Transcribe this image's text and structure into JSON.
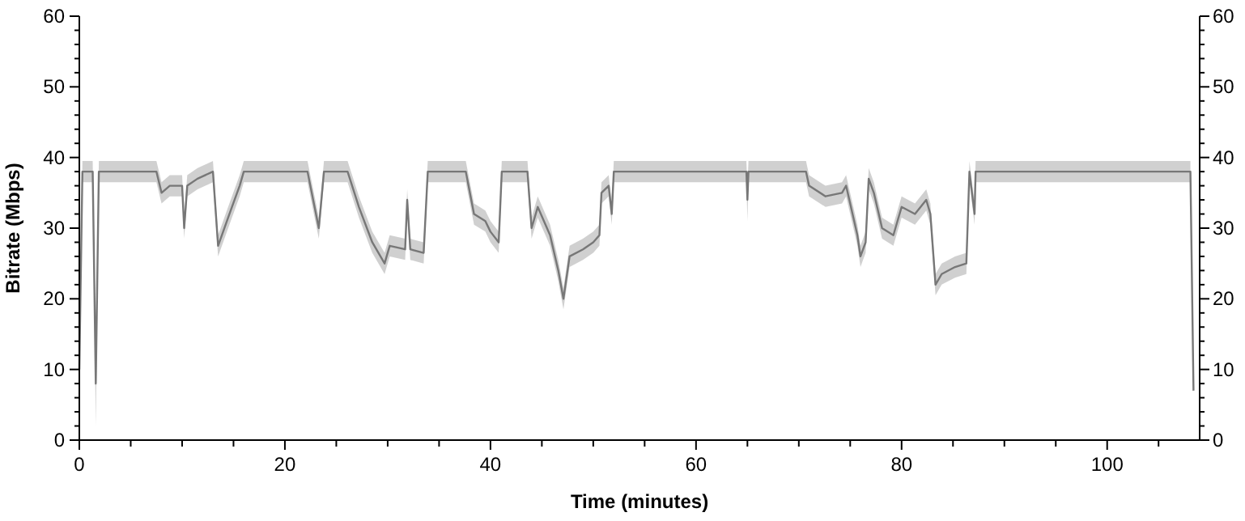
{
  "chart_data": {
    "type": "line",
    "xlabel": "Time (minutes)",
    "ylabel": "Bitrate (Mbps)",
    "x": [
      0,
      0.3,
      1.3,
      1.6,
      1.9,
      7.5,
      8,
      8.8,
      10,
      10.2,
      10.5,
      11.5,
      13,
      13.5,
      14.6,
      15.6,
      16,
      22.2,
      23.3,
      23.8,
      26.1,
      27.2,
      28.5,
      29.7,
      30.2,
      31.7,
      31.9,
      32.2,
      33.5,
      33.9,
      37.6,
      38.4,
      39.5,
      40,
      40.8,
      41.1,
      43.6,
      44,
      44.6,
      45.8,
      46.6,
      47.1,
      47.7,
      49,
      50,
      50.6,
      50.8,
      51.5,
      51.8,
      52,
      64.9,
      65,
      65.1,
      70.7,
      71,
      72.6,
      74.2,
      74.6,
      75.7,
      76,
      76.5,
      76.8,
      77.3,
      78.1,
      79.2,
      80,
      81.3,
      82.4,
      82.8,
      83.3,
      83.9,
      85.2,
      86.3,
      86.6,
      87.1,
      87.2,
      108.1,
      108.4
    ],
    "series": [
      {
        "color": "#777777",
        "values": [
          10,
          38,
          38,
          8,
          38,
          38,
          35,
          36,
          36,
          30,
          36,
          37,
          38,
          27.5,
          32,
          36,
          38,
          38,
          30,
          38,
          38,
          33,
          28,
          25,
          27.5,
          27,
          34,
          27,
          26.5,
          38,
          38,
          32,
          31,
          29.5,
          28,
          38,
          38,
          30,
          33,
          29,
          24,
          20,
          26,
          27,
          28,
          29,
          35,
          36,
          32,
          38,
          38,
          34,
          38,
          38,
          36,
          34.5,
          35,
          36,
          29,
          26,
          28,
          37,
          35,
          30,
          29,
          33,
          32,
          34,
          32,
          22,
          23.5,
          24.5,
          25,
          38,
          32,
          38,
          38,
          7
        ],
        "upper": [
          11.5,
          39.5,
          39.5,
          9.5,
          39.5,
          39.5,
          36.5,
          37.5,
          37.5,
          31.5,
          37.5,
          38.5,
          39.5,
          29,
          33.5,
          37.5,
          39.5,
          39.5,
          31.5,
          39.5,
          39.5,
          34.5,
          29.5,
          26.5,
          29,
          28.5,
          35.5,
          28.5,
          28,
          39.5,
          39.5,
          33.5,
          32.5,
          31,
          29.5,
          39.5,
          39.5,
          31.5,
          34.5,
          30.5,
          25.5,
          21.5,
          27.5,
          28.5,
          29.5,
          30.5,
          36.5,
          37.5,
          33.5,
          39.5,
          39.5,
          35.5,
          39.5,
          39.5,
          37.5,
          36,
          36.5,
          37.5,
          30.5,
          27.5,
          29.5,
          38.5,
          36.5,
          31.5,
          30.5,
          34.5,
          33.5,
          35.5,
          33.5,
          23.5,
          25,
          26,
          26.5,
          39.5,
          33.5,
          39.5,
          39.5,
          null
        ],
        "lower": [
          8.5,
          36.5,
          36.5,
          2,
          36.5,
          36.5,
          33.5,
          34.5,
          34.5,
          28.5,
          34.5,
          35.5,
          36.5,
          26,
          30.5,
          34.5,
          36.5,
          36.5,
          28.5,
          36.5,
          36.5,
          31.5,
          26.5,
          23.5,
          26,
          25.5,
          32.5,
          25.5,
          25,
          36.5,
          36.5,
          30.5,
          29.5,
          28,
          26.5,
          36.5,
          36.5,
          28.5,
          31.5,
          27.5,
          22.5,
          18.5,
          24.5,
          25.5,
          26.5,
          27.5,
          33.5,
          34.5,
          30.5,
          36.5,
          36.5,
          31,
          36.5,
          36.5,
          34.5,
          33,
          33.5,
          34.5,
          27.5,
          24.5,
          26.5,
          35.5,
          33.5,
          28.5,
          27.5,
          31.5,
          30.5,
          32.5,
          30.5,
          20.5,
          22,
          23,
          23.5,
          36.5,
          30.5,
          36.5,
          36.5,
          null
        ]
      }
    ],
    "xlim": [
      0,
      109
    ],
    "xticks": [
      0,
      {
        "value": 5,
        "label": null
      },
      {
        "value": 10,
        "label": null
      },
      {
        "value": 15,
        "label": null
      },
      20,
      {
        "value": 25,
        "label": null
      },
      {
        "value": 30,
        "label": null
      },
      {
        "value": 35,
        "label": null
      },
      40,
      {
        "value": 45,
        "label": null
      },
      {
        "value": 50,
        "label": null
      },
      {
        "value": 55,
        "label": null
      },
      60,
      {
        "value": 65,
        "label": null
      },
      {
        "value": 70,
        "label": null
      },
      {
        "value": 75,
        "label": null
      },
      80,
      {
        "value": 85,
        "label": null
      },
      {
        "value": 90,
        "label": null
      },
      {
        "value": 95,
        "label": null
      },
      100,
      {
        "value": 105,
        "label": null
      }
    ],
    "ylim": [
      0,
      60
    ],
    "yticks": [
      0,
      {
        "value": 2,
        "label": null
      },
      {
        "value": 4,
        "label": null
      },
      {
        "value": 6,
        "label": null
      },
      {
        "value": 8,
        "label": null
      },
      10,
      {
        "value": 12,
        "label": null
      },
      {
        "value": 14,
        "label": null
      },
      {
        "value": 16,
        "label": null
      },
      {
        "value": 18,
        "label": null
      },
      20,
      {
        "value": 22,
        "label": null
      },
      {
        "value": 24,
        "label": null
      },
      {
        "value": 26,
        "label": null
      },
      {
        "value": 28,
        "label": null
      },
      30,
      {
        "value": 32,
        "label": null
      },
      {
        "value": 34,
        "label": null
      },
      {
        "value": 36,
        "label": null
      },
      {
        "value": 38,
        "label": null
      },
      40,
      {
        "value": 42,
        "label": null
      },
      {
        "value": 44,
        "label": null
      },
      {
        "value": 46,
        "label": null
      },
      {
        "value": 48,
        "label": null
      },
      50,
      {
        "value": 52,
        "label": null
      },
      {
        "value": 54,
        "label": null
      },
      {
        "value": 56,
        "label": null
      },
      {
        "value": 58,
        "label": null
      },
      60
    ],
    "y2lim": [
      0,
      60
    ],
    "y2ticks": [
      0,
      {
        "value": 2,
        "label": null
      },
      {
        "value": 4,
        "label": null
      },
      {
        "value": 6,
        "label": null
      },
      {
        "value": 8,
        "label": null
      },
      10,
      {
        "value": 12,
        "label": null
      },
      {
        "value": 14,
        "label": null
      },
      {
        "value": 16,
        "label": null
      },
      {
        "value": 18,
        "label": null
      },
      20,
      {
        "value": 22,
        "label": null
      },
      {
        "value": 24,
        "label": null
      },
      {
        "value": 26,
        "label": null
      },
      {
        "value": 28,
        "label": null
      },
      30,
      {
        "value": 32,
        "label": null
      },
      {
        "value": 34,
        "label": null
      },
      {
        "value": 36,
        "label": null
      },
      {
        "value": 38,
        "label": null
      },
      40,
      {
        "value": 42,
        "label": null
      },
      {
        "value": 44,
        "label": null
      },
      {
        "value": 46,
        "label": null
      },
      {
        "value": 48,
        "label": null
      },
      50,
      {
        "value": 52,
        "label": null
      },
      {
        "value": 54,
        "label": null
      },
      {
        "value": 56,
        "label": null
      },
      {
        "value": 58,
        "label": null
      },
      60
    ]
  }
}
